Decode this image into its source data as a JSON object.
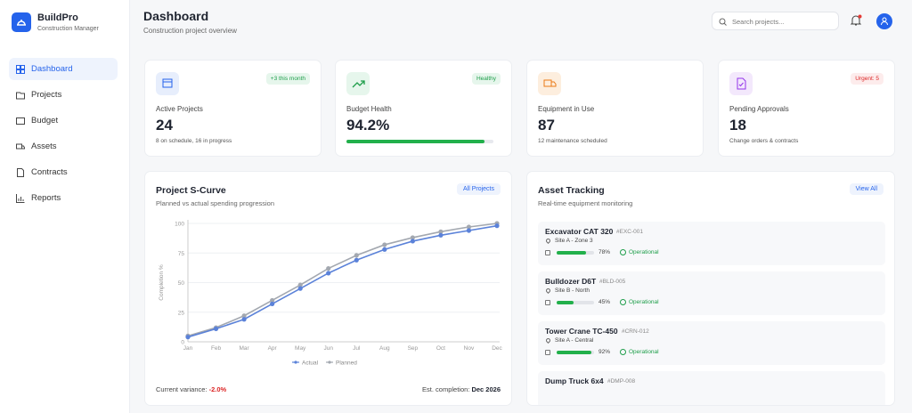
{
  "sidebar": {
    "brand": "BuildPro",
    "tagline": "Construction Manager",
    "nav": [
      "Dashboard",
      "Projects",
      "Budget",
      "Assets",
      "Contracts",
      "Reports"
    ]
  },
  "header": {
    "title": "Dashboard",
    "subtitle": "Construction project overview",
    "search_placeholder": "Search projects..."
  },
  "stats": [
    {
      "badge": "+3 this month",
      "label": "Active Projects",
      "value": 24,
      "note": "8 on schedule, 16 in progress"
    },
    {
      "badge": "Healthy",
      "label": "Budget Health",
      "value": 94.2,
      "value_label": "94.2%"
    },
    {
      "label": "Equipment in Use",
      "value": 87,
      "note": "12 maintenance scheduled"
    },
    {
      "badge": "Urgent: 5",
      "label": "Pending Approvals",
      "value": 18,
      "note": "Change orders & contracts"
    }
  ],
  "s_curve": {
    "button": "All Projects",
    "variance_label": "Current variance:",
    "variance": "-2.0%",
    "completion_label": "Est. completion:",
    "completion": "Dec 2026"
  },
  "chart_data": {
    "type": "line",
    "title": "Project S-Curve",
    "subtitle": "Planned vs actual spending progression",
    "y_label": "Completion %",
    "categories": [
      "Jan",
      "Feb",
      "Mar",
      "Apr",
      "May",
      "Jun",
      "Jul",
      "Aug",
      "Sep",
      "Oct",
      "Nov",
      "Dec"
    ],
    "series": [
      {
        "name": "Actual",
        "color": "#5b82d9",
        "values": [
          4,
          11,
          19,
          32,
          45,
          58,
          69,
          78,
          85,
          90,
          94,
          98
        ]
      },
      {
        "name": "Planned",
        "color": "#a3a8b0",
        "values": [
          5,
          12,
          22,
          35,
          48,
          62,
          73,
          82,
          88,
          93,
          97,
          100
        ]
      }
    ],
    "ylim": [
      0,
      100
    ],
    "yticks": [
      0,
      25,
      50,
      75,
      100
    ],
    "grid": true,
    "legend": "bottom"
  },
  "assets": {
    "title": "Asset Tracking",
    "subtitle": "Real-time equipment monitoring",
    "button": "View All",
    "items": [
      {
        "name": "Excavator CAT 320",
        "id": "#EXC-001",
        "site": "Site A - Zone 3",
        "value": 78,
        "value_label": "78%",
        "status": "Operational"
      },
      {
        "name": "Bulldozer D6T",
        "id": "#BLD-005",
        "site": "Site B - North",
        "value": 45,
        "value_label": "45%",
        "status": "Operational"
      },
      {
        "name": "Tower Crane TC-450",
        "id": "#CRN-012",
        "site": "Site A - Central",
        "value": 92,
        "value_label": "92%",
        "status": "Operational"
      },
      {
        "name": "Dump Truck 6x4",
        "id": "#DMP-008"
      }
    ]
  }
}
